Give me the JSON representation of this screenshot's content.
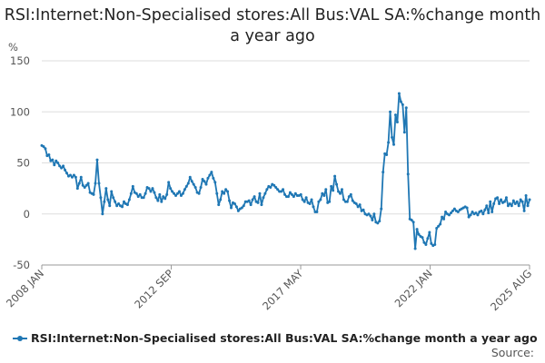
{
  "chart_data": {
    "type": "line",
    "title": "RSI:Internet:Non-Specialised stores:All Bus:VAL SA:%change month a year ago",
    "ylabel": "%",
    "xlabel": "",
    "ylim": [
      -50,
      150
    ],
    "yticks": [
      "150",
      "100",
      "50",
      "0",
      "-50"
    ],
    "xticks": [
      "2008 JAN",
      "2012 SEP",
      "2017 MAY",
      "2022 JAN",
      "2025 AUG"
    ],
    "x_start": "2008 JAN",
    "x_end": "2025 AUG",
    "grid": true,
    "legend_position": "bottom",
    "series": [
      {
        "name": "RSI:Internet:Non-Specialised stores:All Bus:VAL SA:%change month a year ago",
        "color": "#1f77b4",
        "values": [
          67,
          66,
          64,
          57,
          58,
          52,
          53,
          48,
          52,
          50,
          47,
          45,
          47,
          43,
          40,
          37,
          38,
          36,
          38,
          36,
          25,
          30,
          36,
          28,
          26,
          28,
          30,
          21,
          20,
          19,
          30,
          53,
          30,
          16,
          0,
          12,
          25,
          14,
          8,
          22,
          16,
          12,
          8,
          10,
          8,
          7,
          12,
          10,
          9,
          14,
          20,
          27,
          21,
          20,
          17,
          19,
          16,
          16,
          20,
          26,
          25,
          22,
          25,
          21,
          16,
          13,
          19,
          12,
          17,
          15,
          19,
          31,
          25,
          22,
          20,
          18,
          20,
          22,
          18,
          20,
          24,
          27,
          30,
          36,
          32,
          29,
          26,
          21,
          20,
          26,
          34,
          32,
          29,
          35,
          38,
          41,
          35,
          31,
          20,
          9,
          14,
          22,
          20,
          24,
          22,
          13,
          6,
          11,
          10,
          7,
          3,
          5,
          6,
          8,
          12,
          12,
          13,
          9,
          14,
          17,
          12,
          11,
          20,
          9,
          16,
          20,
          24,
          27,
          26,
          29,
          28,
          26,
          24,
          22,
          22,
          24,
          19,
          17,
          17,
          21,
          19,
          17,
          20,
          18,
          18,
          19,
          14,
          12,
          16,
          11,
          10,
          14,
          7,
          2,
          2,
          12,
          14,
          20,
          18,
          24,
          11,
          12,
          27,
          23,
          37,
          29,
          22,
          20,
          24,
          14,
          12,
          12,
          17,
          19,
          13,
          11,
          10,
          7,
          9,
          3,
          4,
          0,
          -1,
          0,
          -2,
          -6,
          0,
          -8,
          -9,
          -7,
          5,
          41,
          59,
          58,
          70,
          100,
          75,
          68,
          97,
          90,
          118,
          110,
          107,
          80,
          104,
          39,
          -5,
          -6,
          -8,
          -34,
          -15,
          -20,
          -22,
          -23,
          -28,
          -30,
          -24,
          -18,
          -29,
          -31,
          -30,
          -14,
          -12,
          -10,
          -3,
          -5,
          2,
          0,
          -1,
          1,
          3,
          5,
          3,
          2,
          4,
          5,
          6,
          7,
          6,
          -3,
          -1,
          2,
          0,
          1,
          -1,
          2,
          3,
          0,
          4,
          8,
          1,
          12,
          2,
          10,
          15,
          16,
          10,
          14,
          11,
          12,
          16,
          8,
          10,
          8,
          13,
          10,
          12,
          8,
          14,
          12,
          3,
          18,
          8,
          14
        ]
      }
    ]
  },
  "legend": {
    "label": "RSI:Internet:Non-Specialised stores:All Bus:VAL SA:%change month a year ago"
  },
  "source": {
    "label": "Source:"
  }
}
